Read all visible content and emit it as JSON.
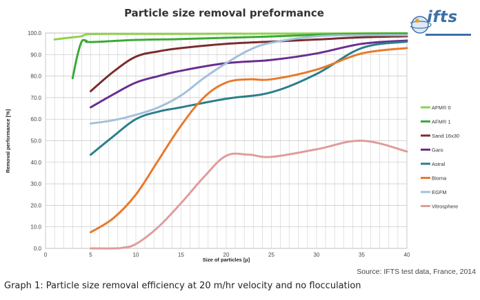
{
  "header": {
    "logo_text": "ifts"
  },
  "chart_data": {
    "type": "line",
    "title": "Particle size removal preformance",
    "xlabel": "Size of particles [µ]",
    "ylabel": "Removal performance [%]",
    "xlim": [
      0,
      40
    ],
    "ylim": [
      0,
      100
    ],
    "xticks": [
      0,
      5,
      10,
      15,
      20,
      25,
      30,
      35,
      40
    ],
    "yticks": [
      "0.0",
      "10.0",
      "20.0",
      "30.0",
      "40.0",
      "50.0",
      "60.0",
      "70.0",
      "80.0",
      "90.0",
      "100.0"
    ],
    "grid": true,
    "legend_position": "right",
    "series": [
      {
        "name": "AFM® 0",
        "color": "#8fd14f",
        "x": [
          1,
          2,
          3,
          4,
          5,
          10,
          15,
          20,
          25,
          30,
          35,
          40
        ],
        "y": [
          97,
          97.5,
          98,
          98.5,
          99.5,
          99.6,
          99.6,
          99.7,
          99.7,
          99.8,
          99.9,
          99.9
        ]
      },
      {
        "name": "AFM® 1",
        "color": "#3aaa35",
        "x": [
          3,
          3.5,
          4,
          4.5,
          5,
          10,
          15,
          20,
          25,
          30,
          35,
          40
        ],
        "y": [
          79,
          89,
          96,
          96.5,
          95.8,
          96.8,
          97.2,
          97.8,
          98.4,
          99.2,
          99.6,
          99.8
        ]
      },
      {
        "name": "Sand 16x30",
        "color": "#7b2c2c",
        "x": [
          5,
          7.5,
          10,
          12.5,
          15,
          20,
          25,
          30,
          35,
          40
        ],
        "y": [
          73,
          82,
          89,
          91.5,
          93,
          95,
          96,
          97,
          98,
          98.5
        ]
      },
      {
        "name": "Garo",
        "color": "#6a2d91",
        "x": [
          5,
          7.5,
          10,
          12.5,
          15,
          20,
          25,
          30,
          35,
          40
        ],
        "y": [
          65.5,
          71.5,
          77,
          80,
          82.5,
          86,
          87.5,
          90.5,
          95,
          96.5
        ]
      },
      {
        "name": "Astral",
        "color": "#2a7e8a",
        "x": [
          5,
          7.5,
          10,
          12.5,
          15,
          20,
          25,
          30,
          35,
          40
        ],
        "y": [
          43.5,
          52,
          60,
          63.5,
          65.5,
          69.5,
          72.5,
          81,
          93,
          96
        ]
      },
      {
        "name": "Bioma",
        "color": "#e8792b",
        "x": [
          5,
          7.5,
          10,
          12.5,
          15,
          17.5,
          20,
          22.5,
          25,
          30,
          35,
          40
        ],
        "y": [
          7.5,
          14,
          25,
          41,
          57,
          70,
          77,
          78.5,
          78.5,
          83,
          90.5,
          93
        ]
      },
      {
        "name": "EGFM",
        "color": "#a3bfdb",
        "x": [
          5,
          7.5,
          10,
          12.5,
          15,
          17.5,
          20,
          22.5,
          25,
          30,
          35,
          40
        ],
        "y": [
          58,
          59.5,
          62,
          65.5,
          71,
          79,
          86,
          92,
          95.5,
          98.5,
          99,
          99
        ]
      },
      {
        "name": "Vitrosphere",
        "color": "#e09c9c",
        "x": [
          5,
          7.5,
          8.5,
          10,
          12.5,
          15,
          17.5,
          20,
          22.5,
          25,
          30,
          35,
          40
        ],
        "y": [
          0,
          0,
          0.3,
          2,
          10,
          21,
          33,
          43,
          43.5,
          42.5,
          46,
          50,
          45
        ]
      }
    ]
  },
  "footer": {
    "source": "Source: IFTS test data, France, 2014",
    "caption": "Graph 1: Particle size removal efficiency at 20 m/hr velocity and no flocculation"
  }
}
